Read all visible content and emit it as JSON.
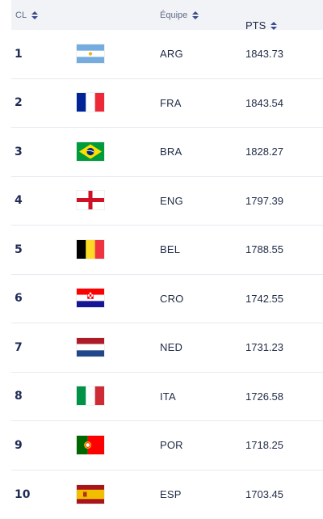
{
  "header": {
    "rank_label": "CL",
    "team_label": "Équipe",
    "points_label": "PTS"
  },
  "rows": [
    {
      "rank": "1",
      "flag_icon": "argentina-flag-icon",
      "code": "ARG",
      "points": "1843.73"
    },
    {
      "rank": "2",
      "flag_icon": "france-flag-icon",
      "code": "FRA",
      "points": "1843.54"
    },
    {
      "rank": "3",
      "flag_icon": "brazil-flag-icon",
      "code": "BRA",
      "points": "1828.27"
    },
    {
      "rank": "4",
      "flag_icon": "england-flag-icon",
      "code": "ENG",
      "points": "1797.39"
    },
    {
      "rank": "5",
      "flag_icon": "belgium-flag-icon",
      "code": "BEL",
      "points": "1788.55"
    },
    {
      "rank": "6",
      "flag_icon": "croatia-flag-icon",
      "code": "CRO",
      "points": "1742.55"
    },
    {
      "rank": "7",
      "flag_icon": "netherlands-flag-icon",
      "code": "NED",
      "points": "1731.23"
    },
    {
      "rank": "8",
      "flag_icon": "italy-flag-icon",
      "code": "ITA",
      "points": "1726.58"
    },
    {
      "rank": "9",
      "flag_icon": "portugal-flag-icon",
      "code": "POR",
      "points": "1718.25"
    },
    {
      "rank": "10",
      "flag_icon": "spain-flag-icon",
      "code": "ESP",
      "points": "1703.45"
    }
  ],
  "colors": {
    "header_background": "#f1f3f7",
    "rank_text": "#1f2a55",
    "sort_icon": "#3b4a8f",
    "row_divider": "#e6e9ef"
  }
}
